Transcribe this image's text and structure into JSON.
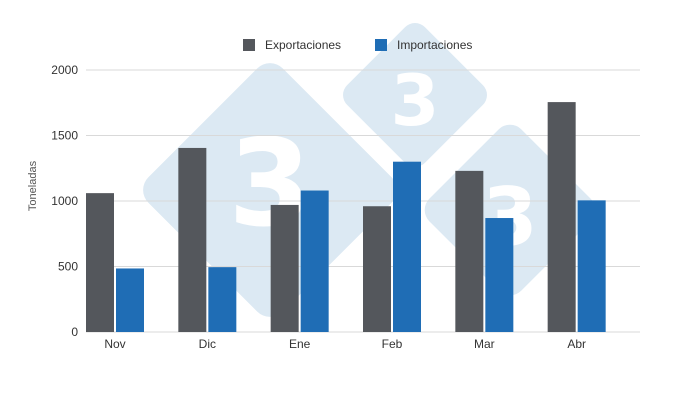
{
  "chart_data": {
    "type": "bar",
    "categories": [
      "Nov",
      "Dic",
      "Ene",
      "Feb",
      "Mar",
      "Abr"
    ],
    "series": [
      {
        "name": "Exportaciones",
        "color": "#54575c",
        "values": [
          1060,
          1405,
          970,
          960,
          1230,
          1755
        ]
      },
      {
        "name": "Importaciones",
        "color": "#1f6db5",
        "values": [
          485,
          495,
          1080,
          1300,
          870,
          1005
        ]
      }
    ],
    "title": "",
    "xlabel": "",
    "ylabel": "Toneladas",
    "ylim": [
      0,
      2000
    ],
    "yticks": [
      0,
      500,
      1000,
      1500,
      2000
    ],
    "grid": true,
    "legend_position": "top-center"
  },
  "watermark": {
    "text": "3"
  }
}
